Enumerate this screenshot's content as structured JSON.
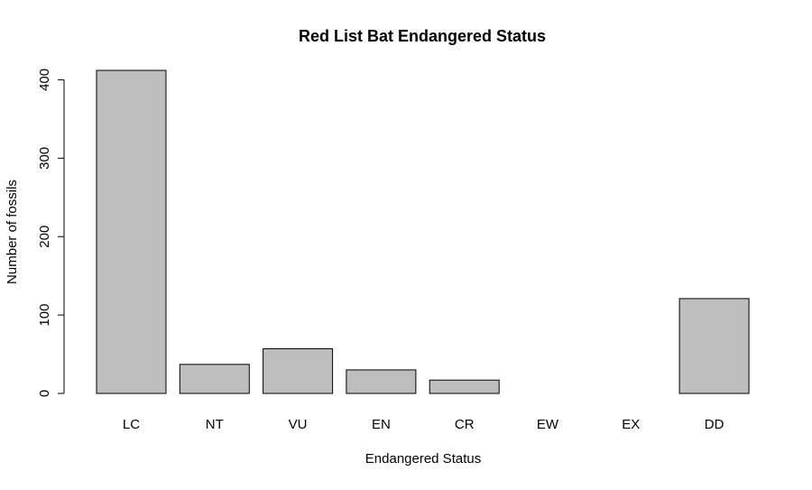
{
  "chart_data": {
    "type": "bar",
    "title": "Red List Bat Endangered Status",
    "xlabel": "Endangered Status",
    "ylabel": "Number of fossils",
    "categories": [
      "LC",
      "NT",
      "VU",
      "EN",
      "CR",
      "EW",
      "EX",
      "DD"
    ],
    "values": [
      412,
      37,
      57,
      30,
      17,
      0,
      0,
      121
    ],
    "ylim": [
      0,
      412
    ],
    "yticks": [
      0,
      100,
      200,
      300,
      400
    ],
    "ytick_labels": [
      "0",
      "100",
      "200",
      "300",
      "400"
    ],
    "grid": false,
    "legend": "none",
    "colors": {
      "bar_fill": "#bebebe",
      "bar_stroke": "#000000",
      "axis": "#000000",
      "background": "#ffffff"
    }
  }
}
